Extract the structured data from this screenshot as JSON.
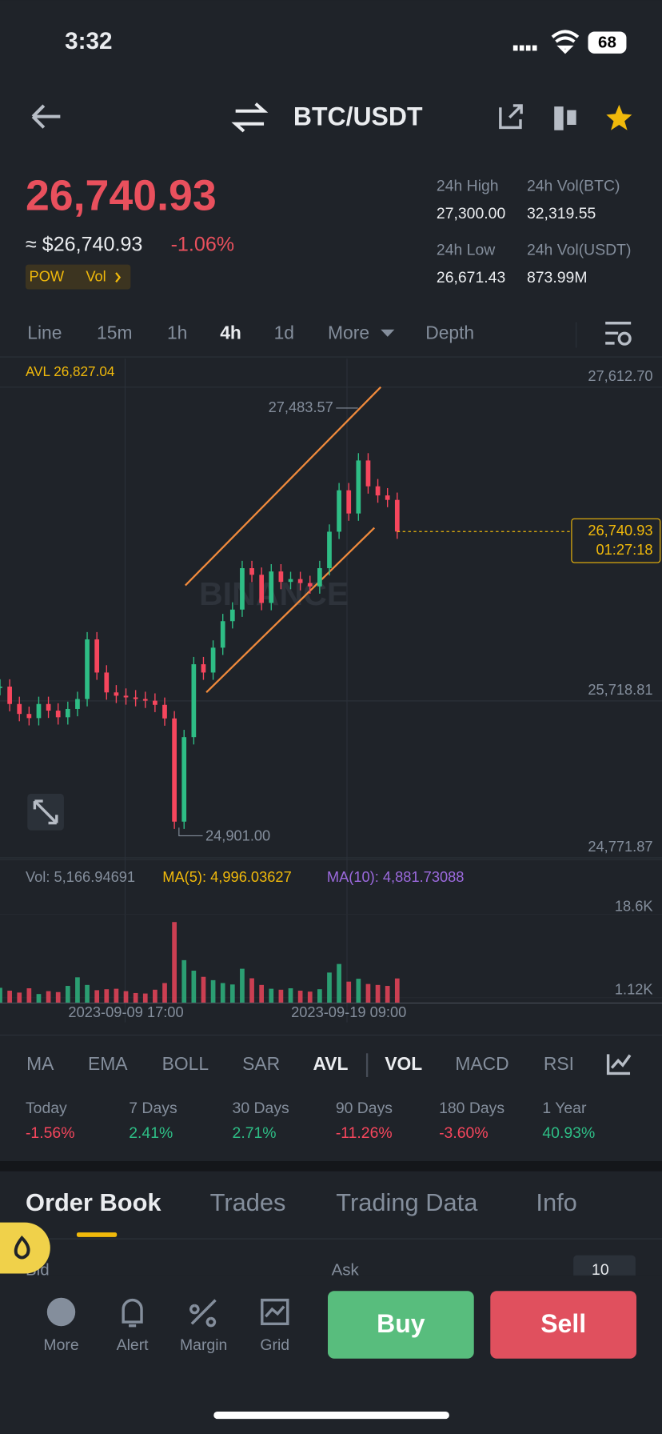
{
  "status": {
    "time": "3:32",
    "battery": "68"
  },
  "header": {
    "pair": "BTC/USDT"
  },
  "price": {
    "last": "26,740.93",
    "usd": "≈ $26,740.93",
    "change": "-1.06%",
    "tags": [
      "POW",
      "Vol"
    ]
  },
  "stats": [
    {
      "label": "24h High",
      "value": "27,300.00"
    },
    {
      "label": "24h Vol(BTC)",
      "value": "32,319.55"
    },
    {
      "label": "24h Low",
      "value": "26,671.43"
    },
    {
      "label": "24h Vol(USDT)",
      "value": "873.99M"
    }
  ],
  "intervals": [
    "Line",
    "15m",
    "1h",
    "4h",
    "1d",
    "More",
    "Depth"
  ],
  "chart_data": [
    {
      "type": "candlestick",
      "avl_label": "AVL 26,827.04",
      "watermark": "BINANCE",
      "values": [
        25805,
        25700,
        25640,
        25615,
        25700,
        25660,
        25620,
        25670,
        25730,
        26090,
        25890,
        25770,
        25750,
        25740,
        25730,
        25720,
        25695,
        25613,
        24990,
        25500,
        25940,
        25890,
        26040,
        26200,
        26270,
        26520,
        26480,
        26310,
        26500,
        26437,
        26454,
        26430,
        26410,
        26520,
        26740,
        26990,
        26850,
        27170,
        27014,
        26959,
        26932,
        26740.93
      ],
      "ylim": [
        24761,
        27784
      ],
      "yticks": [
        {
          "value": 27612.7,
          "label": "27,612.70"
        },
        {
          "value": 25718.81,
          "label": "25,718.81"
        },
        {
          "value": 24771.87,
          "label": "24,771.87"
        }
      ],
      "annotations": {
        "high": "27,483.57",
        "low": "24,901.00",
        "last_price": "26,740.93",
        "countdown": "01:27:18"
      },
      "up_color": "#2ebd85",
      "down_color": "#f6465d"
    },
    {
      "type": "bar",
      "legend": [
        "Vol: 5,166.94691",
        "MA(5): 4,996.03627",
        "MA(10): 4,881.73088"
      ],
      "categories": [
        null,
        null,
        null,
        null,
        null,
        null,
        null,
        null,
        null,
        null,
        null,
        null,
        null,
        "2023-09-09 17:00",
        null,
        null,
        null,
        null,
        null,
        null,
        null,
        null,
        null,
        null,
        null,
        null,
        null,
        null,
        null,
        null,
        null,
        null,
        null,
        null,
        null,
        null,
        "2023-09-19 09:00",
        null,
        null,
        null,
        null,
        null
      ],
      "values": [
        3200,
        2600,
        2200,
        3100,
        1900,
        2500,
        2300,
        3600,
        5400,
        3800,
        2700,
        2900,
        3000,
        2500,
        2100,
        2000,
        2800,
        4200,
        17000,
        9000,
        6800,
        5500,
        4800,
        4200,
        3900,
        7200,
        5200,
        3800,
        3000,
        2800,
        3100,
        2600,
        2400,
        2900,
        6400,
        8200,
        4500,
        5100,
        4000,
        3800,
        3600,
        5167
      ],
      "ylim": [
        0,
        23400
      ],
      "yticks": [
        {
          "value": 18600,
          "label": "18.6K"
        },
        {
          "value": 1120,
          "label": "1.12K"
        }
      ]
    }
  ],
  "indicators": [
    "MA",
    "EMA",
    "BOLL",
    "SAR",
    "AVL",
    "VOL",
    "MACD",
    "RSI"
  ],
  "performance": [
    {
      "label": "Today",
      "value": "-1.56%"
    },
    {
      "label": "7 Days",
      "value": "2.41%"
    },
    {
      "label": "30 Days",
      "value": "2.71%"
    },
    {
      "label": "90 Days",
      "value": "-11.26%"
    },
    {
      "label": "180 Days",
      "value": "-3.60%"
    },
    {
      "label": "1 Year",
      "value": "40.93%"
    }
  ],
  "tabs": [
    "Order Book",
    "Trades",
    "Trading Data",
    "Info"
  ],
  "order_book": {
    "bid": "Bid",
    "ask": "Ask",
    "depth": "10"
  },
  "nav": [
    "More",
    "Alert",
    "Margin",
    "Grid"
  ],
  "actions": {
    "buy": "Buy",
    "sell": "Sell"
  }
}
